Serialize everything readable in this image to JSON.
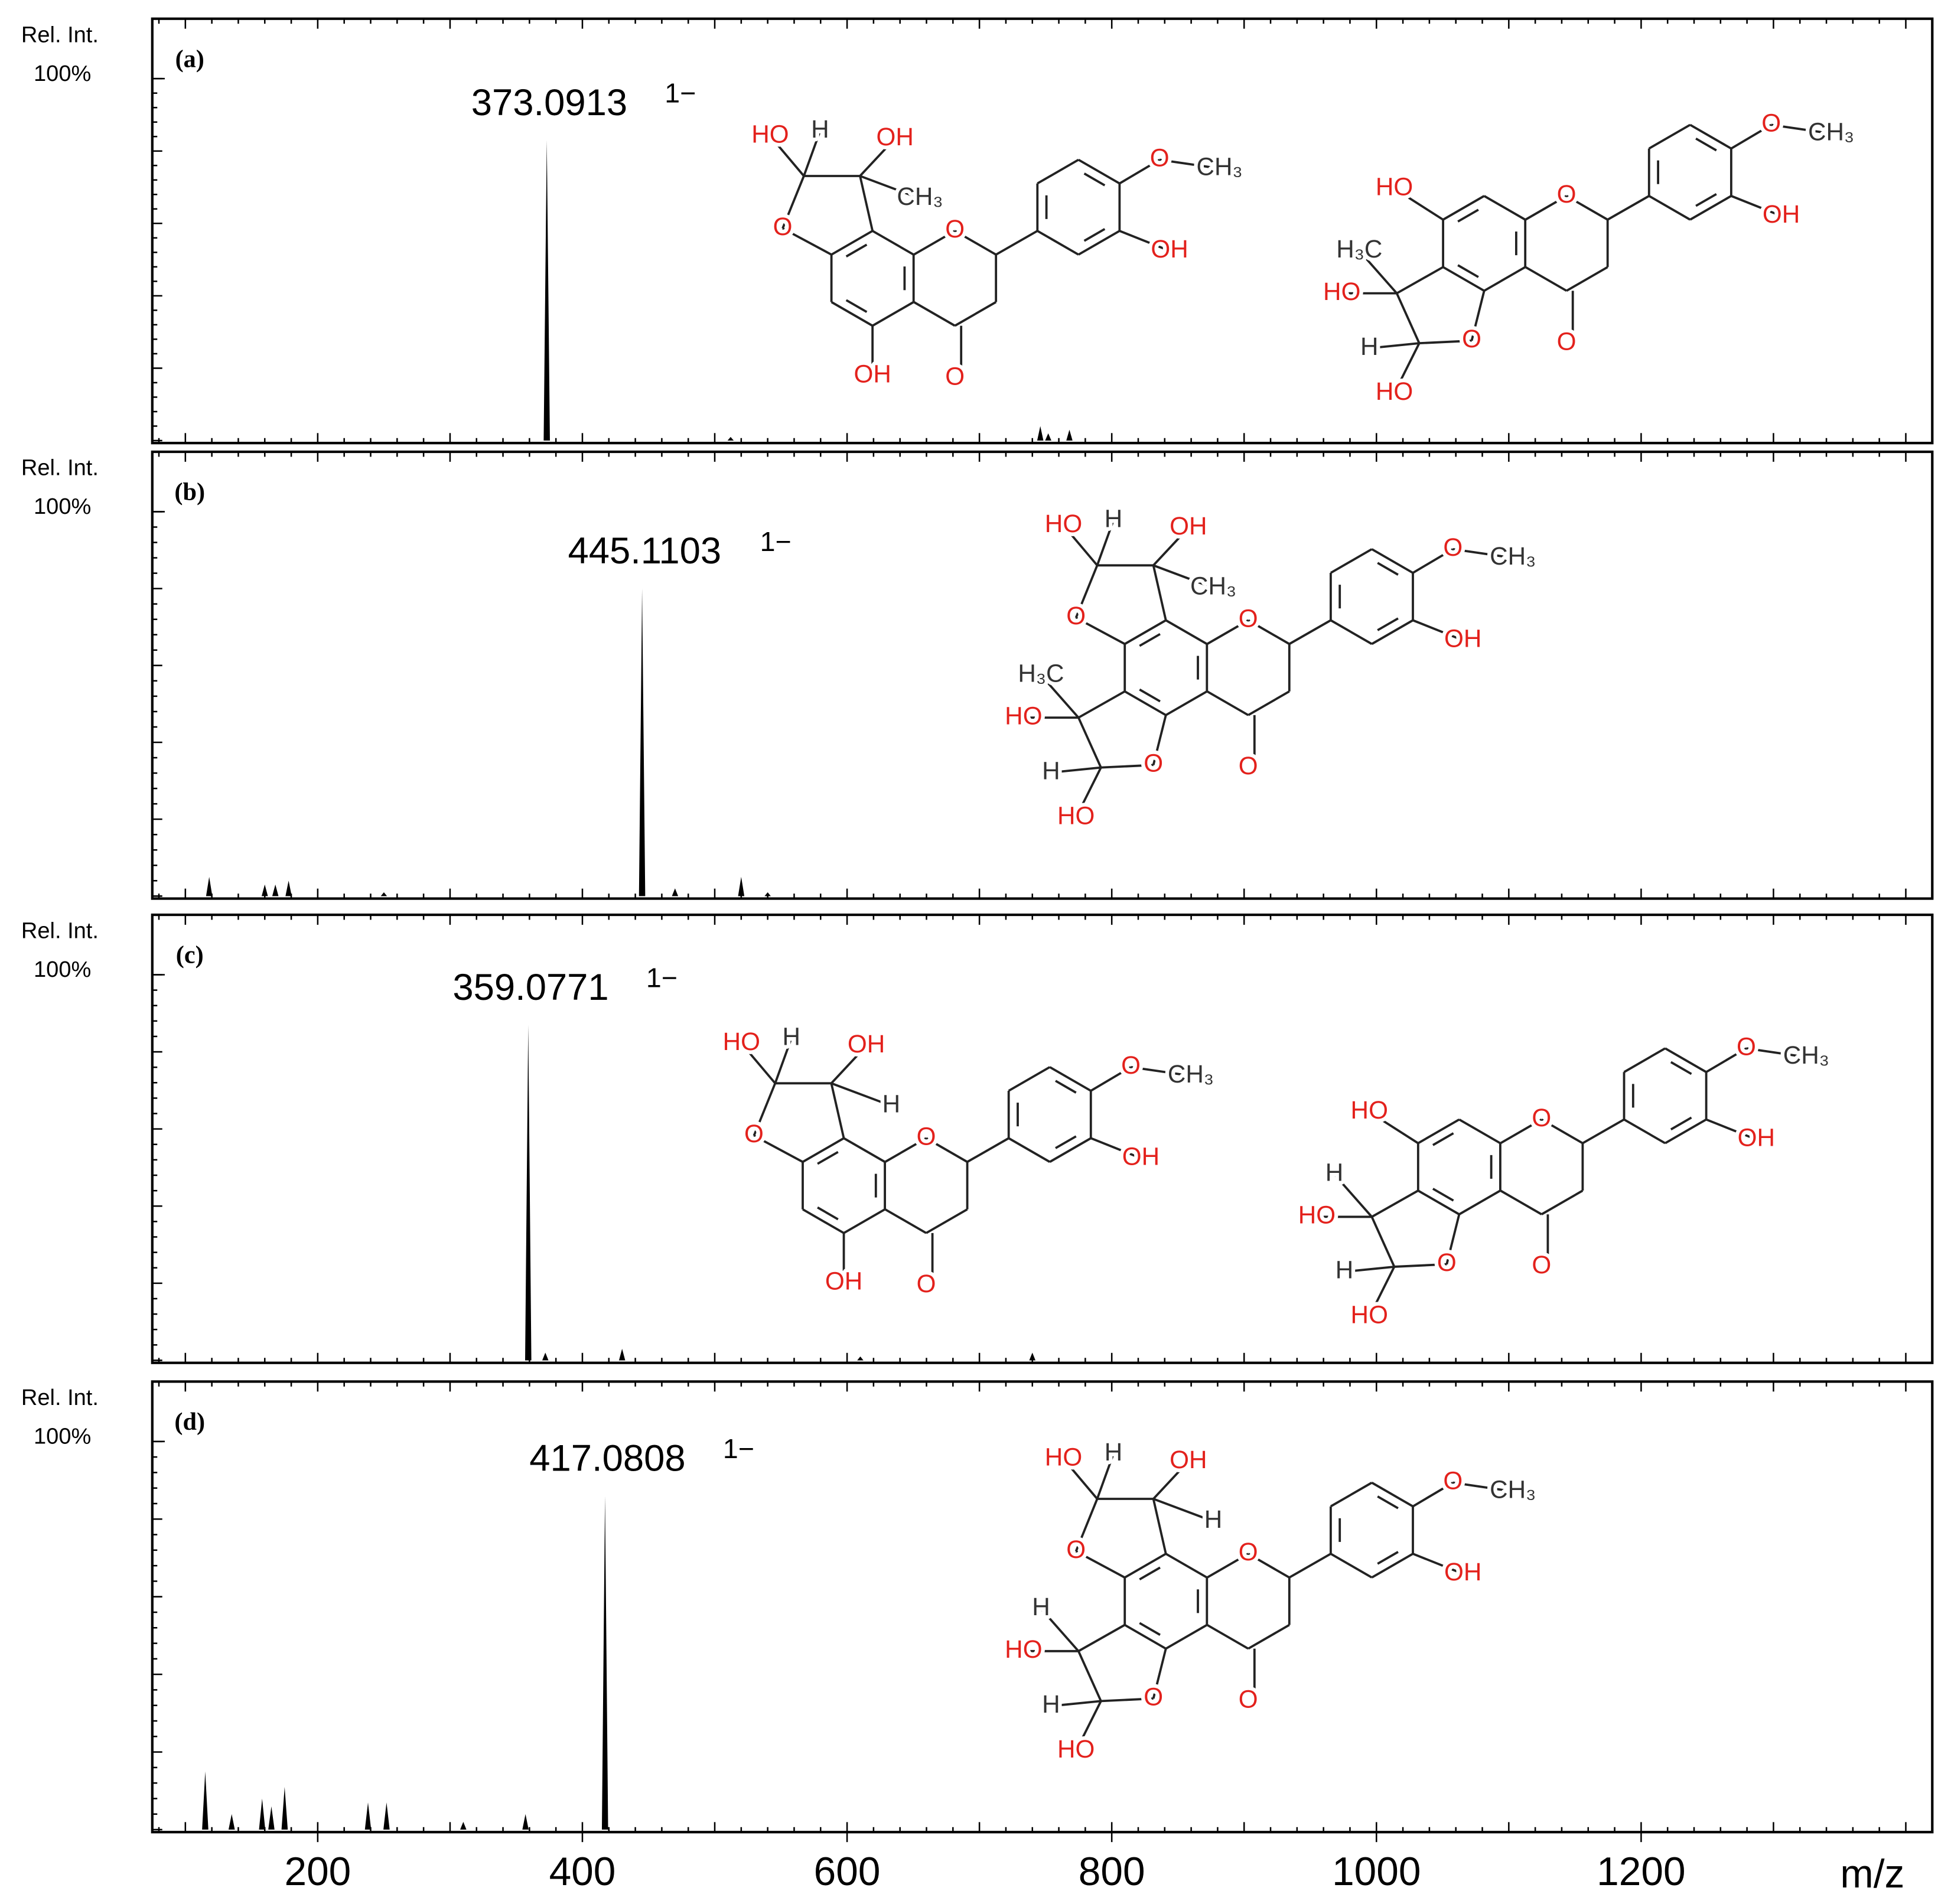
{
  "chart_data": [
    {
      "type": "stem",
      "panel_label": "(a)",
      "y_label": "Rel. Int.",
      "color": "#000000",
      "xlim": [
        75,
        1420
      ],
      "ylim": [
        0,
        100
      ],
      "yticks": [
        {
          "value": 100,
          "label": "100%"
        }
      ],
      "x": [
        373.0913,
        512,
        746,
        752,
        768
      ],
      "values": [
        83,
        1,
        4,
        2,
        3
      ],
      "charge": "1−",
      "structures": [
        {
          "labels": [
            "O",
            "HO",
            "H",
            "OH",
            "CH₃",
            "OH",
            "O",
            "O",
            "O",
            "CH₃",
            "OH"
          ]
        },
        {
          "labels": [
            "HO",
            "H₃C",
            "HO",
            "H",
            "HO",
            "O",
            "O",
            "O",
            "O",
            "CH₃",
            "OH"
          ]
        }
      ]
    },
    {
      "type": "stem",
      "panel_label": "(b)",
      "y_label": "Rel. Int.",
      "color": "#000000",
      "xlim": [
        75,
        1420
      ],
      "ylim": [
        0,
        100
      ],
      "yticks": [
        {
          "value": 100,
          "label": "100%"
        }
      ],
      "x": [
        445.1103,
        118,
        160,
        168,
        178,
        250,
        470,
        520,
        540
      ],
      "values": [
        80,
        5,
        3,
        3,
        4,
        1,
        2,
        5,
        1
      ],
      "charge": "1−",
      "structures": [
        {
          "labels": [
            "O",
            "HO",
            "H",
            "OH",
            "CH₃",
            "H₃C",
            "HO",
            "H",
            "HO",
            "O",
            "O",
            "O",
            "O",
            "CH₃",
            "OH"
          ]
        }
      ]
    },
    {
      "type": "stem",
      "panel_label": "(c)",
      "y_label": "Rel. Int.",
      "color": "#000000",
      "xlim": [
        75,
        1420
      ],
      "ylim": [
        0,
        100
      ],
      "yticks": [
        {
          "value": 100,
          "label": "100%"
        }
      ],
      "x": [
        359.0771,
        372,
        430,
        610,
        740
      ],
      "values": [
        87,
        2,
        3,
        1,
        2
      ],
      "charge": "1−",
      "structures": [
        {
          "labels": [
            "O",
            "HO",
            "H",
            "OH",
            "H",
            "OH",
            "O",
            "O",
            "O",
            "CH₃",
            "OH"
          ]
        },
        {
          "labels": [
            "HO",
            "H",
            "HO",
            "H",
            "HO",
            "O",
            "O",
            "O",
            "O",
            "CH₃",
            "OH"
          ]
        }
      ]
    },
    {
      "type": "stem",
      "panel_label": "(d)",
      "y_label": "Rel. Int.",
      "color": "#000000",
      "xlim": [
        75,
        1420
      ],
      "ylim": [
        0,
        100
      ],
      "yticks": [
        {
          "value": 100,
          "label": "100%"
        }
      ],
      "xticks": [
        200,
        400,
        600,
        800,
        1000,
        1200
      ],
      "xlabel": "m/z",
      "x": [
        417.0808,
        115,
        135,
        158,
        165,
        175,
        238,
        252,
        310,
        357
      ],
      "values": [
        86,
        15,
        4,
        8,
        6,
        11,
        7,
        7,
        2,
        4
      ],
      "charge": "1−",
      "structures": [
        {
          "labels": [
            "O",
            "HO",
            "H",
            "OH",
            "H",
            "H",
            "HO",
            "H",
            "HO",
            "O",
            "O",
            "O",
            "O",
            "CH₃",
            "OH"
          ]
        }
      ]
    }
  ]
}
